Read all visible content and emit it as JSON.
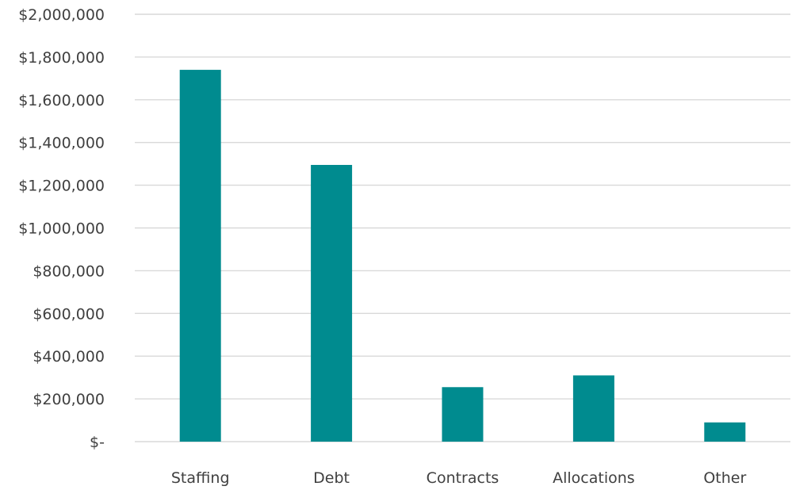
{
  "chart_data": {
    "type": "bar",
    "title": "",
    "xlabel": "",
    "ylabel": "",
    "categories": [
      "Staffing",
      "Debt",
      "Contracts",
      "Allocations",
      "Other"
    ],
    "values": [
      1740000,
      1295000,
      255000,
      310000,
      90000
    ],
    "ylim": [
      0,
      2000000
    ],
    "yticks": [
      0,
      200000,
      400000,
      600000,
      800000,
      1000000,
      1200000,
      1400000,
      1600000,
      1800000,
      2000000
    ],
    "ytick_labels": [
      "$-",
      "$200,000",
      "$400,000",
      "$600,000",
      "$800,000",
      "$1,000,000",
      "$1,200,000",
      "$1,400,000",
      "$1,600,000",
      "$1,800,000",
      "$2,000,000"
    ],
    "grid": true,
    "legend": "none",
    "bar_color": "#008b8f",
    "grid_color": "#d9d9d9",
    "text_color": "#404040"
  }
}
